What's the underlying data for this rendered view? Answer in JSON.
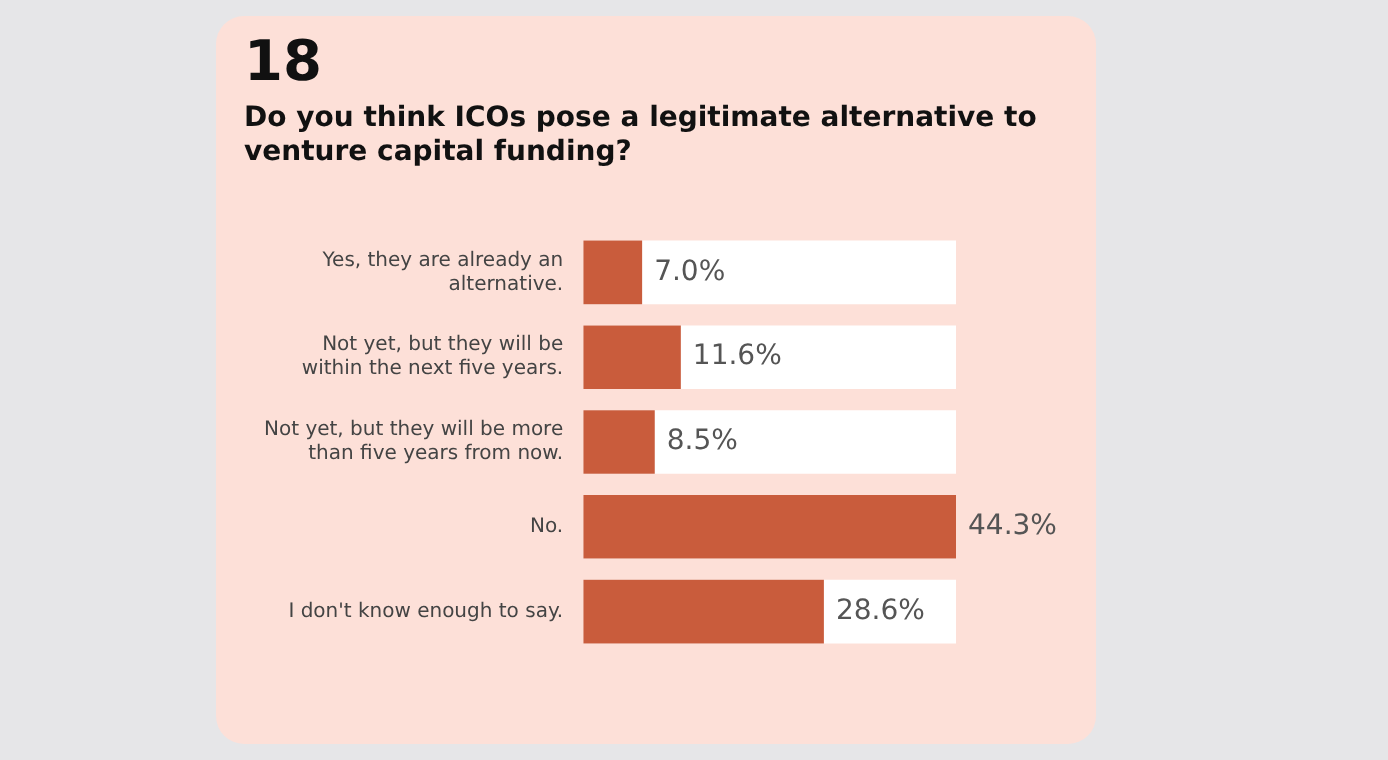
{
  "chart_data": {
    "type": "bar",
    "orientation": "horizontal",
    "title": "18",
    "subtitle": "Do you think ICOs pose a legitimate alternative to venture capital funding?",
    "categories": [
      "Yes, they are already an alternative.",
      "Not yet, but they will be within the next five years.",
      "Not yet, but they will be more than five years from now.",
      "No.",
      "I don't know enough to say."
    ],
    "values": [
      7.0,
      11.6,
      8.5,
      44.3,
      28.6
    ],
    "value_labels": [
      "7.0%",
      "11.6%",
      "8.5%",
      "44.3%",
      "28.6%"
    ],
    "color": "#c95c3c",
    "grid": false,
    "legend": false,
    "tick_labels": "y"
  }
}
